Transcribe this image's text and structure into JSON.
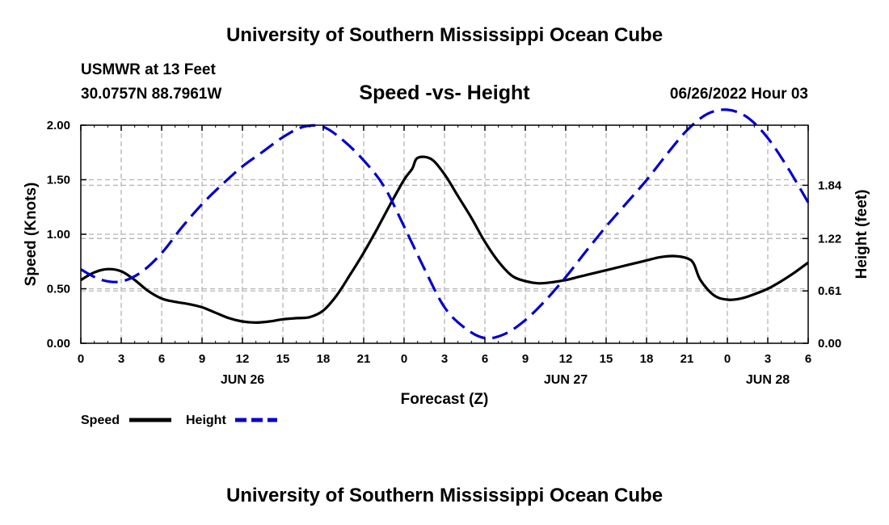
{
  "header": {
    "title": "University of Southern Mississippi Ocean Cube",
    "station": "USMWR at 13 Feet",
    "coords": "30.0757N  88.7961W",
    "chart_title": "Speed -vs- Height",
    "datetime": "06/26/2022 Hour 03"
  },
  "footer": {
    "title": "University of Southern Mississippi Ocean Cube"
  },
  "colors": {
    "speed": "#000000",
    "height": "#0000cc",
    "grid": "#b4b4b4"
  },
  "legend": {
    "speed_label": "Speed",
    "height_label": "Height"
  },
  "chart_data": {
    "type": "line",
    "title": "Speed -vs- Height",
    "xlabel": "Forecast (Z)",
    "ylabel": "Speed (Knots)",
    "y2label": "Height (feet)",
    "xlim": [
      0,
      54
    ],
    "ylim": [
      0,
      2.0
    ],
    "y2lim": [
      0,
      2.54
    ],
    "x_ticks": [
      0,
      3,
      6,
      9,
      12,
      15,
      18,
      21,
      24,
      27,
      30,
      33,
      36,
      39,
      42,
      45,
      48,
      51,
      54
    ],
    "x_tick_labels": [
      "0",
      "3",
      "6",
      "9",
      "12",
      "15",
      "18",
      "21",
      "0",
      "3",
      "6",
      "9",
      "12",
      "15",
      "18",
      "21",
      "0",
      "3",
      "6"
    ],
    "date_labels": [
      {
        "x": 12,
        "label": "JUN 26"
      },
      {
        "x": 36,
        "label": "JUN 27"
      },
      {
        "x": 51,
        "label": "JUN 28"
      }
    ],
    "y_ticks": [
      0,
      0.5,
      1.0,
      1.5,
      2.0
    ],
    "y_tick_labels": [
      "0.00",
      "0.50",
      "1.00",
      "1.50",
      "2.00"
    ],
    "y2_ticks": [
      0,
      0.61,
      1.22,
      1.84
    ],
    "y2_tick_labels": [
      "0.00",
      "0.61",
      "1.22",
      "1.84"
    ],
    "grid": true,
    "series": [
      {
        "name": "Speed",
        "axis": "left",
        "style": "solid",
        "x": [
          0,
          1,
          2,
          3,
          4,
          5,
          6,
          7,
          8,
          9,
          10,
          11,
          12,
          13,
          14,
          15,
          16,
          17,
          18,
          19,
          20,
          21,
          22,
          23,
          24,
          24.6,
          25,
          26,
          27,
          28,
          29,
          30,
          31,
          32,
          33,
          34,
          35,
          36,
          37,
          38,
          39,
          40,
          41,
          42,
          43,
          44,
          45,
          45.5,
          46,
          47,
          48,
          49,
          50,
          51,
          52,
          53,
          54
        ],
        "values": [
          0.58,
          0.65,
          0.68,
          0.66,
          0.58,
          0.48,
          0.41,
          0.38,
          0.36,
          0.33,
          0.28,
          0.23,
          0.2,
          0.19,
          0.2,
          0.22,
          0.23,
          0.24,
          0.3,
          0.44,
          0.63,
          0.83,
          1.05,
          1.28,
          1.5,
          1.6,
          1.7,
          1.69,
          1.55,
          1.35,
          1.15,
          0.93,
          0.75,
          0.62,
          0.57,
          0.55,
          0.56,
          0.58,
          0.61,
          0.64,
          0.67,
          0.7,
          0.73,
          0.76,
          0.79,
          0.8,
          0.78,
          0.73,
          0.58,
          0.44,
          0.4,
          0.41,
          0.45,
          0.5,
          0.57,
          0.65,
          0.74
        ]
      },
      {
        "name": "Height",
        "axis": "right",
        "style": "dashed",
        "x": [
          0,
          1.5,
          3,
          4.5,
          6,
          7.5,
          9,
          10.5,
          12,
          13.5,
          15,
          16.5,
          18,
          19.5,
          21,
          22.5,
          24,
          25.5,
          27,
          28.5,
          30,
          31.5,
          33,
          34.5,
          36,
          37.5,
          39,
          40.5,
          42,
          43.5,
          45,
          46.5,
          48,
          49.5,
          51,
          52.5,
          54
        ],
        "values": [
          0.86,
          0.74,
          0.72,
          0.83,
          1.05,
          1.35,
          1.62,
          1.85,
          2.06,
          2.23,
          2.4,
          2.52,
          2.52,
          2.36,
          2.13,
          1.83,
          1.36,
          0.87,
          0.42,
          0.18,
          0.06,
          0.11,
          0.27,
          0.5,
          0.77,
          1.07,
          1.36,
          1.63,
          1.9,
          2.2,
          2.48,
          2.67,
          2.72,
          2.63,
          2.39,
          2.04,
          1.64
        ]
      }
    ]
  }
}
